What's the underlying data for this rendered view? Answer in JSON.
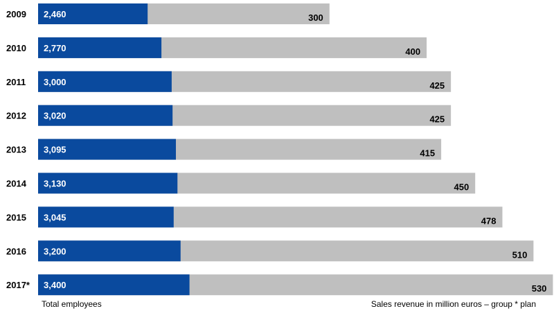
{
  "chart_data": {
    "type": "bar",
    "orientation": "horizontal",
    "stacked": false,
    "categories": [
      "2009",
      "2010",
      "2011",
      "2012",
      "2013",
      "2014",
      "2015",
      "2016",
      "2017*"
    ],
    "series": [
      {
        "name": "Total employees",
        "values": [
          2460,
          2770,
          3000,
          3020,
          3095,
          3130,
          3045,
          3200,
          3400
        ],
        "labels": [
          "2,460",
          "2,770",
          "3,000",
          "3,020",
          "3,095",
          "3,130",
          "3,045",
          "3,200",
          "3,400"
        ],
        "color": "#0a4a9e"
      },
      {
        "name": "Sales revenue in million euros – group",
        "values": [
          300,
          400,
          425,
          425,
          415,
          450,
          478,
          510,
          530
        ],
        "labels": [
          "300",
          "400",
          "425",
          "425",
          "415",
          "450",
          "478",
          "510",
          "530"
        ],
        "color": "#bfbfbf"
      }
    ],
    "grid": false,
    "legend": {
      "left": "Total employees",
      "right": "Sales revenue in million euros – group  * plan"
    }
  }
}
